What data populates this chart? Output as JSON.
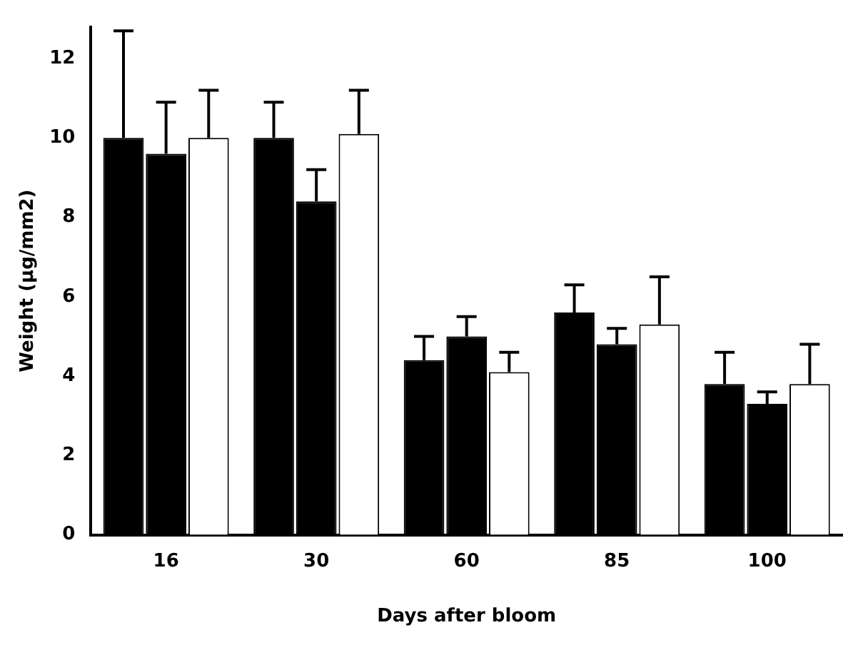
{
  "chart_data": {
    "type": "bar",
    "xlabel": "Days after bloom",
    "ylabel": "Weight (µg/mm2)",
    "categories": [
      "16",
      "30",
      "60",
      "85",
      "100"
    ],
    "series": [
      {
        "color": "#000000",
        "values": [
          10.0,
          10.0,
          4.4,
          5.6,
          3.8
        ],
        "errors": [
          [
            10.0,
            12.7
          ],
          [
            10.0,
            10.9
          ],
          [
            4.4,
            5.0
          ],
          [
            5.6,
            6.3
          ],
          [
            3.8,
            4.6
          ]
        ]
      },
      {
        "color": "#000000",
        "values": [
          9.6,
          8.4,
          5.0,
          4.8,
          3.3
        ],
        "errors": [
          [
            9.6,
            10.9
          ],
          [
            8.4,
            9.2
          ],
          [
            5.0,
            5.5
          ],
          [
            4.8,
            5.2
          ],
          [
            3.3,
            3.6
          ]
        ]
      },
      {
        "color": "#ffffff",
        "values": [
          10.0,
          10.1,
          4.1,
          5.3,
          3.8
        ],
        "errors": [
          [
            10.0,
            11.2
          ],
          [
            10.1,
            11.2
          ],
          [
            4.1,
            4.6
          ],
          [
            5.3,
            6.5
          ],
          [
            3.8,
            4.8
          ]
        ]
      }
    ],
    "ylim": [
      0,
      12.8
    ],
    "yticks": [
      0,
      2,
      4,
      6,
      8,
      10,
      12
    ],
    "grid": false,
    "legend": false
  }
}
